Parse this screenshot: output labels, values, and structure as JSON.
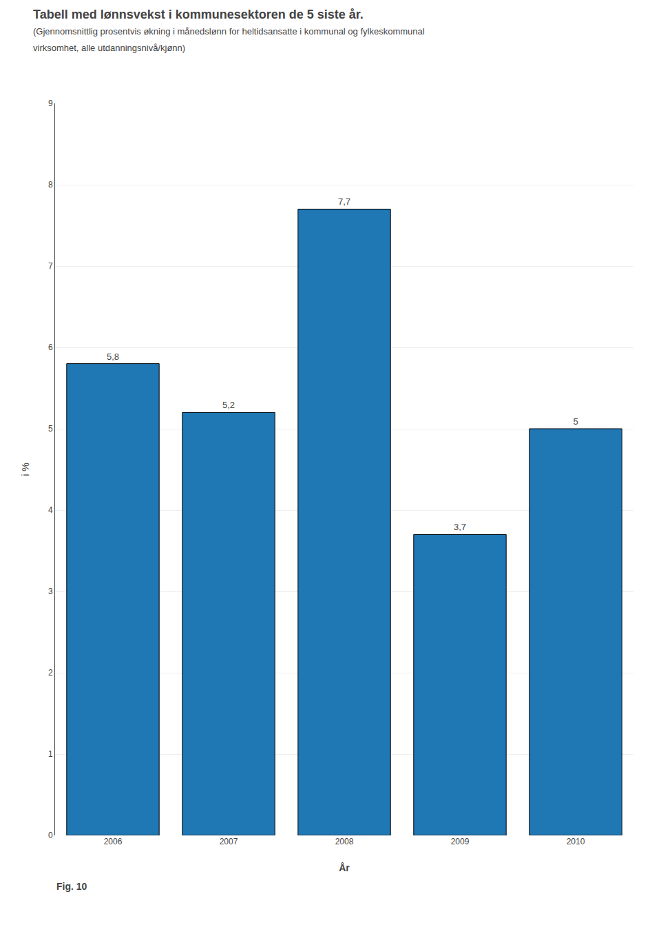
{
  "chart_data": {
    "type": "bar",
    "title": "Tabell med lønnsvekst i kommunesektoren de 5 siste år.",
    "subtitle": [
      "(Gjennomsnittlig prosentvis økning i månedslønn for heltidsansatte i kommunal og fylkeskommunal",
      "virksomhet, alle utdanningsnivå/kjønn)"
    ],
    "categories": [
      "2006",
      "2007",
      "2008",
      "2009",
      "2010"
    ],
    "values": [
      5.8,
      5.2,
      7.7,
      3.7,
      5.0
    ],
    "value_labels": [
      "5,8",
      "5,2",
      "7,7",
      "3,7",
      "5"
    ],
    "data_labels": true,
    "xlabel": "År",
    "ylabel": "i %",
    "ylim": [
      0,
      9
    ],
    "yticks": [
      0,
      1,
      2,
      3,
      4,
      5,
      6,
      7,
      8,
      9
    ],
    "grid": true,
    "annotations": [
      "Fig. 10"
    ]
  }
}
